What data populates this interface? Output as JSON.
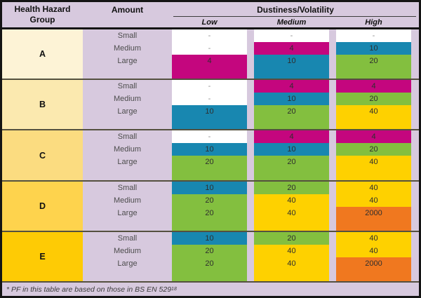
{
  "palette": {
    "none": "#ffffff",
    "magenta": "#c4067e",
    "blue": "#1887b0",
    "green": "#83bf3f",
    "yellow": "#fed100",
    "orange": "#f0781f",
    "groupA": "#fdf3d6",
    "groupB": "#fbe9af",
    "groupC": "#fbdc80",
    "groupD": "#fed34d",
    "groupE": "#fecb05",
    "lilac": "#d7c9de"
  },
  "header": {
    "group_col": "Health Hazard Group",
    "amount_col": "Amount",
    "dustiness_col": "Dustiness/Volatility",
    "subcols": [
      "Low",
      "Medium",
      "High"
    ]
  },
  "groups": [
    {
      "label": "A",
      "bg": "groupA",
      "rows": [
        {
          "amount": "Small",
          "cells": [
            {
              "value": "-",
              "color": "none"
            },
            {
              "value": "-",
              "color": "none"
            },
            {
              "value": "-",
              "color": "none"
            }
          ]
        },
        {
          "amount": "Medium",
          "cells": [
            {
              "value": "-",
              "color": "none"
            },
            {
              "value": "4",
              "color": "magenta"
            },
            {
              "value": "10",
              "color": "blue"
            }
          ]
        },
        {
          "amount": "Large",
          "cells": [
            {
              "value": "4",
              "color": "magenta"
            },
            {
              "value": "10",
              "color": "blue"
            },
            {
              "value": "20",
              "color": "green"
            }
          ]
        }
      ]
    },
    {
      "label": "B",
      "bg": "groupB",
      "rows": [
        {
          "amount": "Small",
          "cells": [
            {
              "value": "-",
              "color": "none"
            },
            {
              "value": "4",
              "color": "magenta"
            },
            {
              "value": "4",
              "color": "magenta"
            }
          ]
        },
        {
          "amount": "Medium",
          "cells": [
            {
              "value": "-",
              "color": "none"
            },
            {
              "value": "10",
              "color": "blue"
            },
            {
              "value": "20",
              "color": "green"
            }
          ]
        },
        {
          "amount": "Large",
          "cells": [
            {
              "value": "10",
              "color": "blue"
            },
            {
              "value": "20",
              "color": "green"
            },
            {
              "value": "40",
              "color": "yellow"
            }
          ]
        }
      ]
    },
    {
      "label": "C",
      "bg": "groupC",
      "rows": [
        {
          "amount": "Small",
          "cells": [
            {
              "value": "-",
              "color": "none"
            },
            {
              "value": "4",
              "color": "magenta"
            },
            {
              "value": "4",
              "color": "magenta"
            }
          ]
        },
        {
          "amount": "Medium",
          "cells": [
            {
              "value": "10",
              "color": "blue"
            },
            {
              "value": "10",
              "color": "blue"
            },
            {
              "value": "20",
              "color": "green"
            }
          ]
        },
        {
          "amount": "Large",
          "cells": [
            {
              "value": "20",
              "color": "green"
            },
            {
              "value": "20",
              "color": "green"
            },
            {
              "value": "40",
              "color": "yellow"
            }
          ]
        }
      ]
    },
    {
      "label": "D",
      "bg": "groupD",
      "rows": [
        {
          "amount": "Small",
          "cells": [
            {
              "value": "10",
              "color": "blue"
            },
            {
              "value": "20",
              "color": "green"
            },
            {
              "value": "40",
              "color": "yellow"
            }
          ]
        },
        {
          "amount": "Medium",
          "cells": [
            {
              "value": "20",
              "color": "green"
            },
            {
              "value": "40",
              "color": "yellow"
            },
            {
              "value": "40",
              "color": "yellow"
            }
          ]
        },
        {
          "amount": "Large",
          "cells": [
            {
              "value": "20",
              "color": "green"
            },
            {
              "value": "40",
              "color": "yellow"
            },
            {
              "value": "2000",
              "color": "orange"
            }
          ]
        }
      ]
    },
    {
      "label": "E",
      "bg": "groupE",
      "rows": [
        {
          "amount": "Small",
          "cells": [
            {
              "value": "10",
              "color": "blue"
            },
            {
              "value": "20",
              "color": "green"
            },
            {
              "value": "40",
              "color": "yellow"
            }
          ]
        },
        {
          "amount": "Medium",
          "cells": [
            {
              "value": "20",
              "color": "green"
            },
            {
              "value": "40",
              "color": "yellow"
            },
            {
              "value": "40",
              "color": "yellow"
            }
          ]
        },
        {
          "amount": "Large",
          "cells": [
            {
              "value": "20",
              "color": "green"
            },
            {
              "value": "40",
              "color": "yellow"
            },
            {
              "value": "2000",
              "color": "orange"
            }
          ]
        }
      ]
    }
  ],
  "footnote": {
    "text": "* PF in this table are based on those in BS EN 529",
    "sup": "18"
  }
}
